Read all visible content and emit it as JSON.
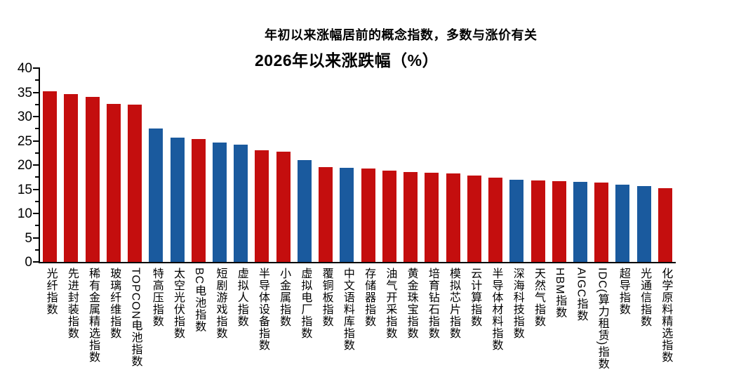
{
  "colors": {
    "red": "#C40E0E",
    "blue": "#1A5A9E",
    "axis": "#000000",
    "text": "#000000",
    "background": "#FFFFFF"
  },
  "chart_data": {
    "type": "bar",
    "subtitle": "年初以来涨幅居前的概念指数，多数与涨价有关",
    "title": "2026年以来涨跌幅（%）",
    "xlabel": "",
    "ylabel": "",
    "ylim": [
      0,
      40
    ],
    "yticks": [
      0,
      5,
      10,
      15,
      20,
      25,
      30,
      35,
      40
    ],
    "ytick_minor_step": 2.5,
    "grid": false,
    "legend": false,
    "categories": [
      "光纤指数",
      "先进封装指数",
      "稀有金属精选指数",
      "玻璃纤维指数",
      "TOPCON电池指数",
      "特高压指数",
      "太空光伏指数",
      "BC电池指数",
      "短剧游戏指数",
      "虚拟人指数",
      "半导体设备指数",
      "小金属指数",
      "虚拟电厂指数",
      "覆铜板指数",
      "中文语料库指数",
      "存储器指数",
      "油气开采指数",
      "黄金珠宝指数",
      "培育钻石指数",
      "模拟芯片指数",
      "云计算指数",
      "半导体材料指数",
      "深海科技指数",
      "天然气指数",
      "HBM指数",
      "AIGC指数",
      "IDC(算力租赁)指数",
      "超导指数",
      "光通信指数",
      "化学原料精选指数"
    ],
    "values": [
      35.2,
      34.6,
      34.0,
      32.6,
      32.4,
      27.6,
      25.7,
      25.4,
      24.7,
      24.2,
      23.1,
      22.7,
      21.0,
      19.6,
      19.4,
      19.3,
      18.8,
      18.5,
      18.4,
      18.3,
      17.8,
      17.4,
      16.9,
      16.8,
      16.7,
      16.5,
      16.4,
      15.9,
      15.7,
      15.2
    ],
    "bar_color_keys": [
      "red",
      "red",
      "red",
      "red",
      "red",
      "blue",
      "blue",
      "red",
      "blue",
      "blue",
      "red",
      "red",
      "blue",
      "red",
      "blue",
      "red",
      "red",
      "red",
      "red",
      "red",
      "red",
      "red",
      "blue",
      "red",
      "red",
      "blue",
      "red",
      "blue",
      "blue",
      "red"
    ]
  }
}
